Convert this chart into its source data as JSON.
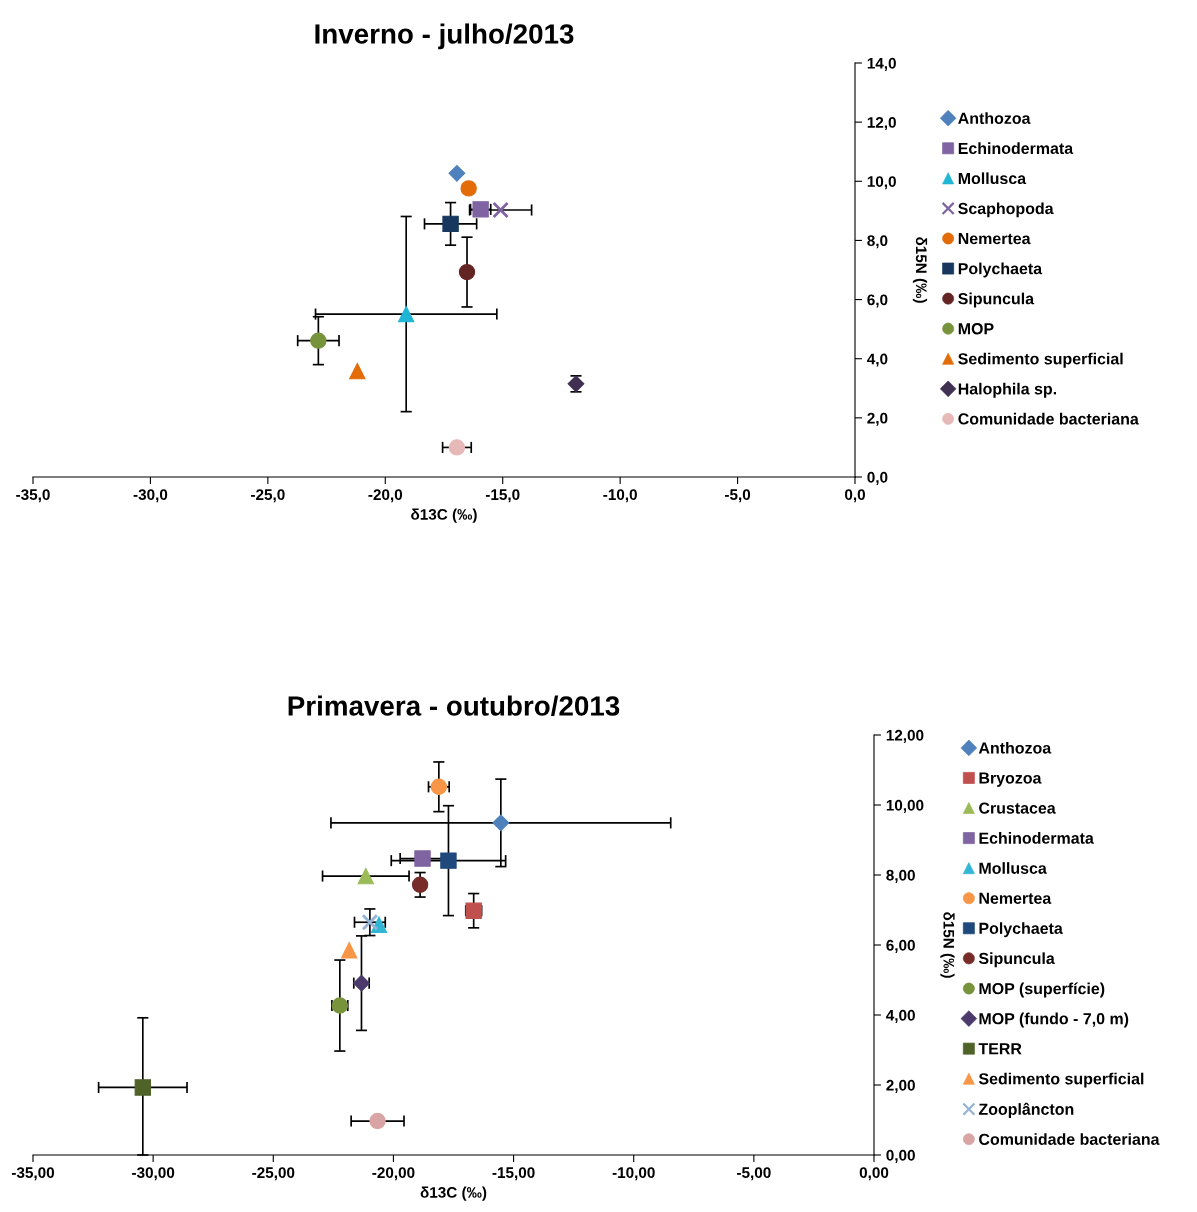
{
  "chart_data": [
    {
      "type": "scatter",
      "title": "Inverno - julho/2013",
      "xlabel": "δ13C (‰)",
      "ylabel": "δ15N (‰)",
      "legend": "right",
      "grid": false,
      "xlim": [
        -35,
        0
      ],
      "xticks": [
        {
          "value": -35,
          "label": "-35,0"
        },
        {
          "value": -30,
          "label": "-30,0"
        },
        {
          "value": -25,
          "label": "-25,0"
        },
        {
          "value": -20,
          "label": "-20,0"
        },
        {
          "value": -15,
          "label": "-15,0"
        },
        {
          "value": -10,
          "label": "-10,0"
        },
        {
          "value": -5,
          "label": "-5,0"
        },
        {
          "value": 0,
          "label": "0,0"
        }
      ],
      "ylim": [
        0,
        14
      ],
      "yticks": [
        {
          "value": 0,
          "label": "0,0"
        },
        {
          "value": 2,
          "label": "2,0"
        },
        {
          "value": 4,
          "label": "4,0"
        },
        {
          "value": 6,
          "label": "6,0"
        },
        {
          "value": 8,
          "label": "8,0"
        },
        {
          "value": 10,
          "label": "10,0"
        },
        {
          "value": 12,
          "label": "12,0"
        },
        {
          "value": 14,
          "label": "14,0"
        }
      ],
      "series": [
        {
          "name": "Anthozoa",
          "color": "#4f81bd",
          "marker": "diamond",
          "x": [
            -16.95
          ],
          "values": [
            10.27
          ]
        },
        {
          "name": "Echinodermata",
          "color": "#8064a2",
          "marker": "square",
          "x": [
            -15.94
          ],
          "values": [
            9.05
          ],
          "xerrors": [
            0.43
          ]
        },
        {
          "name": "Mollusca",
          "color": "#1fb5d4",
          "marker": "triangle",
          "x": [
            -19.11
          ],
          "values": [
            5.51
          ],
          "errors": [
            3.3
          ],
          "xerrors": [
            3.86
          ]
        },
        {
          "name": "Scaphopoda",
          "color": "#8064a2",
          "marker": "cross",
          "x": [
            -15.09
          ],
          "values": [
            9.03
          ],
          "xerrors": [
            1.32
          ]
        },
        {
          "name": "Nemertea",
          "color": "#e36c09",
          "marker": "circle",
          "x": [
            -16.45
          ],
          "values": [
            9.76
          ]
        },
        {
          "name": "Polychaeta",
          "color": "#17375e",
          "marker": "square",
          "x": [
            -17.22
          ],
          "values": [
            8.56
          ],
          "errors": [
            0.72
          ],
          "xerrors": [
            1.11
          ]
        },
        {
          "name": "Sipuncula",
          "color": "#632523",
          "marker": "circle",
          "x": [
            -16.52
          ],
          "values": [
            6.93
          ],
          "errors": [
            1.18
          ]
        },
        {
          "name": "MOP",
          "color": "#77933c",
          "marker": "circle",
          "x": [
            -22.85
          ],
          "values": [
            4.61
          ],
          "errors": [
            0.81
          ],
          "xerrors": [
            0.88
          ]
        },
        {
          "name": "Sedimento superficial",
          "color": "#e36c09",
          "marker": "triangle",
          "x": [
            -21.19
          ],
          "values": [
            3.58
          ]
        },
        {
          "name": "Halophila sp.",
          "color": "#403152",
          "marker": "diamond",
          "x": [
            -11.88
          ],
          "values": [
            3.15
          ],
          "errors": [
            0.27
          ]
        },
        {
          "name": "Comunidade bacteriana",
          "color": "#e6b9b8",
          "marker": "circle",
          "x": [
            -16.95
          ],
          "values": [
            1.0
          ],
          "xerrors": [
            0.61
          ]
        }
      ]
    },
    {
      "type": "scatter",
      "title": "Primavera - outubro/2013",
      "xlabel": "δ13C (‰)",
      "ylabel": "δ15N (‰)",
      "legend": "right",
      "grid": false,
      "xlim": [
        -35,
        0
      ],
      "xticks": [
        {
          "value": -35,
          "label": "-35,00"
        },
        {
          "value": -30,
          "label": "-30,00"
        },
        {
          "value": -25,
          "label": "-25,00"
        },
        {
          "value": -20,
          "label": "-20,00"
        },
        {
          "value": -15,
          "label": "-15,00"
        },
        {
          "value": -10,
          "label": "-10,00"
        },
        {
          "value": -5,
          "label": "-5,00"
        },
        {
          "value": 0,
          "label": "0,00"
        }
      ],
      "ylim": [
        0,
        12
      ],
      "yticks": [
        {
          "value": 0,
          "label": "0,00"
        },
        {
          "value": 2,
          "label": "2,00"
        },
        {
          "value": 4,
          "label": "4,00"
        },
        {
          "value": 6,
          "label": "6,00"
        },
        {
          "value": 8,
          "label": "8,00"
        },
        {
          "value": 10,
          "label": "10,00"
        },
        {
          "value": 12,
          "label": "12,00"
        }
      ],
      "series": [
        {
          "name": "Anthozoa",
          "color": "#4f81bd",
          "marker": "diamond",
          "x": [
            -15.53
          ],
          "values": [
            9.49
          ],
          "errors": [
            1.25
          ],
          "xerrors": [
            7.07
          ]
        },
        {
          "name": "Bryozoa",
          "color": "#c0504d",
          "marker": "square",
          "x": [
            -16.66
          ],
          "values": [
            6.98
          ],
          "errors": [
            0.49
          ],
          "xerrors": [
            0.33
          ]
        },
        {
          "name": "Crustacea",
          "color": "#9bbb59",
          "marker": "triangle",
          "x": [
            -21.15
          ],
          "values": [
            7.97
          ],
          "xerrors": [
            1.8
          ]
        },
        {
          "name": "Echinodermata",
          "color": "#8064a2",
          "marker": "square",
          "x": [
            -18.79
          ],
          "values": [
            8.47
          ],
          "xerrors": [
            0.93
          ]
        },
        {
          "name": "Mollusca",
          "color": "#31b6d6",
          "marker": "triangle",
          "x": [
            -20.6
          ],
          "values": [
            6.58
          ]
        },
        {
          "name": "Nemertea",
          "color": "#f79646",
          "marker": "circle",
          "x": [
            -18.11
          ],
          "values": [
            10.52
          ],
          "errors": [
            0.71
          ],
          "xerrors": [
            0.43
          ]
        },
        {
          "name": "Polychaeta",
          "color": "#1f497d",
          "marker": "square",
          "x": [
            -17.71
          ],
          "values": [
            8.41
          ],
          "errors": [
            1.57
          ],
          "xerrors": [
            2.38
          ]
        },
        {
          "name": "Sipuncula",
          "color": "#772c2a",
          "marker": "circle",
          "x": [
            -18.89
          ],
          "values": [
            7.72
          ],
          "errors": [
            0.35
          ]
        },
        {
          "name": "MOP (superfície)",
          "color": "#77933c",
          "marker": "circle",
          "x": [
            -22.23
          ],
          "values": [
            4.27
          ],
          "errors": [
            1.3
          ],
          "xerrors": [
            0.33
          ]
        },
        {
          "name": "MOP (fundo - 7,0 m)",
          "color": "#4b3a6b",
          "marker": "diamond",
          "x": [
            -21.33
          ],
          "values": [
            4.91
          ],
          "errors": [
            1.35
          ],
          "xerrors": [
            0.32
          ]
        },
        {
          "name": "TERR",
          "color": "#4f6228",
          "marker": "square",
          "x": [
            -30.43
          ],
          "values": [
            1.93
          ],
          "errors": [
            [
              0,
              3.92
            ]
          ],
          "xerrors": [
            1.84
          ]
        },
        {
          "name": "Sedimento superficial",
          "color": "#f79646",
          "marker": "triangle",
          "x": [
            -21.84
          ],
          "values": [
            5.85
          ]
        },
        {
          "name": "Zooplâncton",
          "color": "#95b3d7",
          "marker": "cross",
          "x": [
            -20.98
          ],
          "values": [
            6.65
          ],
          "errors": [
            0.38
          ],
          "xerrors": [
            0.64
          ]
        },
        {
          "name": "Comunidade bacteriana",
          "color": "#d9a4a4",
          "marker": "circle",
          "x": [
            -20.66
          ],
          "values": [
            0.97
          ],
          "xerrors": [
            1.1
          ]
        }
      ]
    }
  ]
}
